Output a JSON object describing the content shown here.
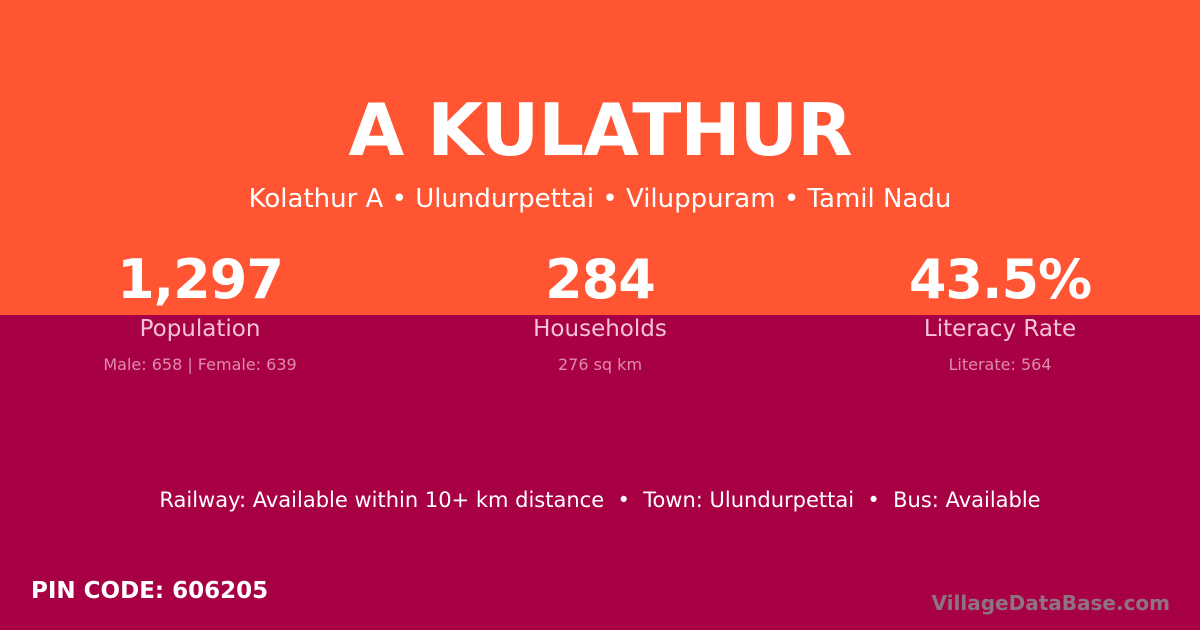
{
  "colors": {
    "top": "#ff5533",
    "bottom": "#a80044"
  },
  "title": "A KULATHUR",
  "subtitle": "Kolathur A • Ulundurpettai • Viluppuram • Tamil Nadu",
  "stats": [
    {
      "value": "1,297",
      "label": "Population",
      "detail": "Male: 658 | Female: 639"
    },
    {
      "value": "284",
      "label": "Households",
      "detail": "276 sq km"
    },
    {
      "value": "43.5%",
      "label": "Literacy Rate",
      "detail": "Literate: 564"
    }
  ],
  "info": "Railway: Available within 10+ km distance  •  Town: Ulundurpettai  •  Bus: Available",
  "pin": "PIN CODE: 606205",
  "brand": "VillageDataBase.com"
}
